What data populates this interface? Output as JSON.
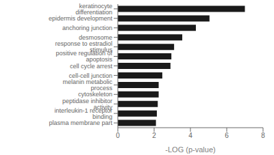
{
  "chart_data": {
    "type": "bar",
    "orientation": "horizontal",
    "categories": [
      "keratinocyte differentiation",
      "epidermis development",
      "anchoring junction",
      "desmosome",
      "response to estradiol stimulus",
      "positive regulation of apoptosis",
      "cell cycle arrest",
      "cell-cell junction",
      "melanin metabolic process",
      "cytoskeleton",
      "peptidase inhibitor activity",
      "interleukin-1 receptor binding",
      "plasma membrane part"
    ],
    "values": [
      7.0,
      5.05,
      4.3,
      3.55,
      3.1,
      2.95,
      2.9,
      2.45,
      2.25,
      2.25,
      2.2,
      2.15,
      2.1
    ],
    "color": "#1a1a1a",
    "xlabel": "-LOG (p-value)",
    "xlim": [
      0,
      8
    ],
    "xticks": [
      0,
      2,
      4,
      6,
      8
    ],
    "grid": false
  }
}
